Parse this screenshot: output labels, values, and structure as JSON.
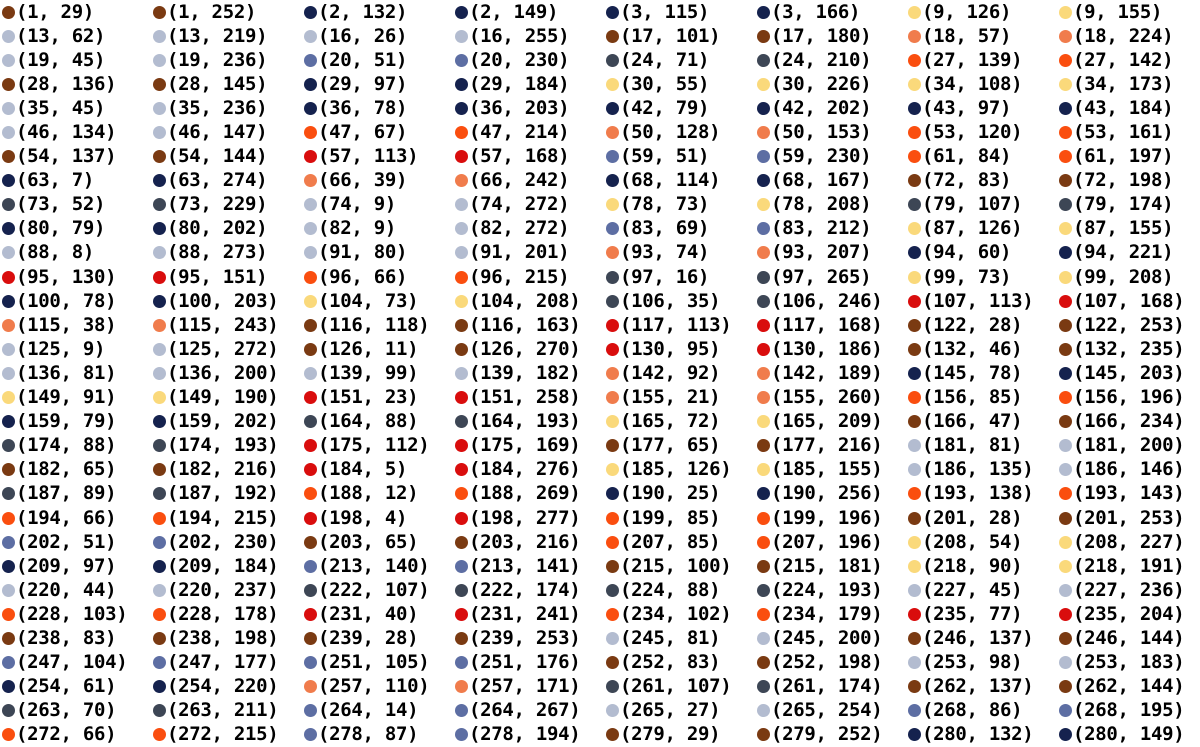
{
  "colors": {
    "o": "#7a3a12",
    "n": "#15224e",
    "y": "#fad97b",
    "l": "#b3bcd0",
    "s": "#f07c4c",
    "c": "#3d4655",
    "r": "#fa4e0f",
    "b": "#5d6ea3",
    "d": "#d90d0d"
  },
  "entries": [
    {
      "label": "(1, 29)",
      "color": "o"
    },
    {
      "label": "(1, 252)",
      "color": "o"
    },
    {
      "label": "(2, 132)",
      "color": "n"
    },
    {
      "label": "(2, 149)",
      "color": "n"
    },
    {
      "label": "(3, 115)",
      "color": "n"
    },
    {
      "label": "(3, 166)",
      "color": "n"
    },
    {
      "label": "(9, 126)",
      "color": "y"
    },
    {
      "label": "(9, 155)",
      "color": "y"
    },
    {
      "label": "(13, 62)",
      "color": "l"
    },
    {
      "label": "(13, 219)",
      "color": "l"
    },
    {
      "label": "(16, 26)",
      "color": "l"
    },
    {
      "label": "(16, 255)",
      "color": "l"
    },
    {
      "label": "(17, 101)",
      "color": "o"
    },
    {
      "label": "(17, 180)",
      "color": "o"
    },
    {
      "label": "(18, 57)",
      "color": "s"
    },
    {
      "label": "(18, 224)",
      "color": "s"
    },
    {
      "label": "(19, 45)",
      "color": "l"
    },
    {
      "label": "(19, 236)",
      "color": "l"
    },
    {
      "label": "(20, 51)",
      "color": "b"
    },
    {
      "label": "(20, 230)",
      "color": "b"
    },
    {
      "label": "(24, 71)",
      "color": "c"
    },
    {
      "label": "(24, 210)",
      "color": "c"
    },
    {
      "label": "(27, 139)",
      "color": "r"
    },
    {
      "label": "(27, 142)",
      "color": "r"
    },
    {
      "label": "(28, 136)",
      "color": "o"
    },
    {
      "label": "(28, 145)",
      "color": "o"
    },
    {
      "label": "(29, 97)",
      "color": "n"
    },
    {
      "label": "(29, 184)",
      "color": "n"
    },
    {
      "label": "(30, 55)",
      "color": "y"
    },
    {
      "label": "(30, 226)",
      "color": "y"
    },
    {
      "label": "(34, 108)",
      "color": "y"
    },
    {
      "label": "(34, 173)",
      "color": "y"
    },
    {
      "label": "(35, 45)",
      "color": "l"
    },
    {
      "label": "(35, 236)",
      "color": "l"
    },
    {
      "label": "(36, 78)",
      "color": "n"
    },
    {
      "label": "(36, 203)",
      "color": "n"
    },
    {
      "label": "(42, 79)",
      "color": "n"
    },
    {
      "label": "(42, 202)",
      "color": "n"
    },
    {
      "label": "(43, 97)",
      "color": "n"
    },
    {
      "label": "(43, 184)",
      "color": "n"
    },
    {
      "label": "(46, 134)",
      "color": "l"
    },
    {
      "label": "(46, 147)",
      "color": "l"
    },
    {
      "label": "(47, 67)",
      "color": "r"
    },
    {
      "label": "(47, 214)",
      "color": "r"
    },
    {
      "label": "(50, 128)",
      "color": "s"
    },
    {
      "label": "(50, 153)",
      "color": "s"
    },
    {
      "label": "(53, 120)",
      "color": "r"
    },
    {
      "label": "(53, 161)",
      "color": "r"
    },
    {
      "label": "(54, 137)",
      "color": "o"
    },
    {
      "label": "(54, 144)",
      "color": "o"
    },
    {
      "label": "(57, 113)",
      "color": "d"
    },
    {
      "label": "(57, 168)",
      "color": "d"
    },
    {
      "label": "(59, 51)",
      "color": "b"
    },
    {
      "label": "(59, 230)",
      "color": "b"
    },
    {
      "label": "(61, 84)",
      "color": "r"
    },
    {
      "label": "(61, 197)",
      "color": "r"
    },
    {
      "label": "(63, 7)",
      "color": "n"
    },
    {
      "label": "(63, 274)",
      "color": "n"
    },
    {
      "label": "(66, 39)",
      "color": "s"
    },
    {
      "label": "(66, 242)",
      "color": "s"
    },
    {
      "label": "(68, 114)",
      "color": "n"
    },
    {
      "label": "(68, 167)",
      "color": "n"
    },
    {
      "label": "(72, 83)",
      "color": "o"
    },
    {
      "label": "(72, 198)",
      "color": "o"
    },
    {
      "label": "(73, 52)",
      "color": "c"
    },
    {
      "label": "(73, 229)",
      "color": "c"
    },
    {
      "label": "(74, 9)",
      "color": "l"
    },
    {
      "label": "(74, 272)",
      "color": "l"
    },
    {
      "label": "(78, 73)",
      "color": "y"
    },
    {
      "label": "(78, 208)",
      "color": "y"
    },
    {
      "label": "(79, 107)",
      "color": "c"
    },
    {
      "label": "(79, 174)",
      "color": "c"
    },
    {
      "label": "(80, 79)",
      "color": "n"
    },
    {
      "label": "(80, 202)",
      "color": "n"
    },
    {
      "label": "(82, 9)",
      "color": "l"
    },
    {
      "label": "(82, 272)",
      "color": "l"
    },
    {
      "label": "(83, 69)",
      "color": "b"
    },
    {
      "label": "(83, 212)",
      "color": "b"
    },
    {
      "label": "(87, 126)",
      "color": "y"
    },
    {
      "label": "(87, 155)",
      "color": "y"
    },
    {
      "label": "(88, 8)",
      "color": "l"
    },
    {
      "label": "(88, 273)",
      "color": "l"
    },
    {
      "label": "(91, 80)",
      "color": "l"
    },
    {
      "label": "(91, 201)",
      "color": "l"
    },
    {
      "label": "(93, 74)",
      "color": "s"
    },
    {
      "label": "(93, 207)",
      "color": "s"
    },
    {
      "label": "(94, 60)",
      "color": "n"
    },
    {
      "label": "(94, 221)",
      "color": "n"
    },
    {
      "label": "(95, 130)",
      "color": "d"
    },
    {
      "label": "(95, 151)",
      "color": "d"
    },
    {
      "label": "(96, 66)",
      "color": "r"
    },
    {
      "label": "(96, 215)",
      "color": "r"
    },
    {
      "label": "(97, 16)",
      "color": "c"
    },
    {
      "label": "(97, 265)",
      "color": "c"
    },
    {
      "label": "(99, 73)",
      "color": "y"
    },
    {
      "label": "(99, 208)",
      "color": "y"
    },
    {
      "label": "(100, 78)",
      "color": "n"
    },
    {
      "label": "(100, 203)",
      "color": "n"
    },
    {
      "label": "(104, 73)",
      "color": "y"
    },
    {
      "label": "(104, 208)",
      "color": "y"
    },
    {
      "label": "(106, 35)",
      "color": "c"
    },
    {
      "label": "(106, 246)",
      "color": "c"
    },
    {
      "label": "(107, 113)",
      "color": "d"
    },
    {
      "label": "(107, 168)",
      "color": "d"
    },
    {
      "label": "(115, 38)",
      "color": "s"
    },
    {
      "label": "(115, 243)",
      "color": "s"
    },
    {
      "label": "(116, 118)",
      "color": "o"
    },
    {
      "label": "(116, 163)",
      "color": "o"
    },
    {
      "label": "(117, 113)",
      "color": "d"
    },
    {
      "label": "(117, 168)",
      "color": "d"
    },
    {
      "label": "(122, 28)",
      "color": "o"
    },
    {
      "label": "(122, 253)",
      "color": "o"
    },
    {
      "label": "(125, 9)",
      "color": "l"
    },
    {
      "label": "(125, 272)",
      "color": "l"
    },
    {
      "label": "(126, 11)",
      "color": "o"
    },
    {
      "label": "(126, 270)",
      "color": "o"
    },
    {
      "label": "(130, 95)",
      "color": "d"
    },
    {
      "label": "(130, 186)",
      "color": "d"
    },
    {
      "label": "(132, 46)",
      "color": "o"
    },
    {
      "label": "(132, 235)",
      "color": "o"
    },
    {
      "label": "(136, 81)",
      "color": "l"
    },
    {
      "label": "(136, 200)",
      "color": "l"
    },
    {
      "label": "(139, 99)",
      "color": "l"
    },
    {
      "label": "(139, 182)",
      "color": "l"
    },
    {
      "label": "(142, 92)",
      "color": "s"
    },
    {
      "label": "(142, 189)",
      "color": "s"
    },
    {
      "label": "(145, 78)",
      "color": "n"
    },
    {
      "label": "(145, 203)",
      "color": "n"
    },
    {
      "label": "(149, 91)",
      "color": "y"
    },
    {
      "label": "(149, 190)",
      "color": "y"
    },
    {
      "label": "(151, 23)",
      "color": "d"
    },
    {
      "label": "(151, 258)",
      "color": "d"
    },
    {
      "label": "(155, 21)",
      "color": "s"
    },
    {
      "label": "(155, 260)",
      "color": "s"
    },
    {
      "label": "(156, 85)",
      "color": "r"
    },
    {
      "label": "(156, 196)",
      "color": "r"
    },
    {
      "label": "(159, 79)",
      "color": "n"
    },
    {
      "label": "(159, 202)",
      "color": "n"
    },
    {
      "label": "(164, 88)",
      "color": "c"
    },
    {
      "label": "(164, 193)",
      "color": "c"
    },
    {
      "label": "(165, 72)",
      "color": "y"
    },
    {
      "label": "(165, 209)",
      "color": "y"
    },
    {
      "label": "(166, 47)",
      "color": "o"
    },
    {
      "label": "(166, 234)",
      "color": "o"
    },
    {
      "label": "(174, 88)",
      "color": "c"
    },
    {
      "label": "(174, 193)",
      "color": "c"
    },
    {
      "label": "(175, 112)",
      "color": "d"
    },
    {
      "label": "(175, 169)",
      "color": "d"
    },
    {
      "label": "(177, 65)",
      "color": "o"
    },
    {
      "label": "(177, 216)",
      "color": "o"
    },
    {
      "label": "(181, 81)",
      "color": "l"
    },
    {
      "label": "(181, 200)",
      "color": "l"
    },
    {
      "label": "(182, 65)",
      "color": "o"
    },
    {
      "label": "(182, 216)",
      "color": "o"
    },
    {
      "label": "(184, 5)",
      "color": "d"
    },
    {
      "label": "(184, 276)",
      "color": "d"
    },
    {
      "label": "(185, 126)",
      "color": "y"
    },
    {
      "label": "(185, 155)",
      "color": "y"
    },
    {
      "label": "(186, 135)",
      "color": "l"
    },
    {
      "label": "(186, 146)",
      "color": "l"
    },
    {
      "label": "(187, 89)",
      "color": "c"
    },
    {
      "label": "(187, 192)",
      "color": "c"
    },
    {
      "label": "(188, 12)",
      "color": "r"
    },
    {
      "label": "(188, 269)",
      "color": "r"
    },
    {
      "label": "(190, 25)",
      "color": "n"
    },
    {
      "label": "(190, 256)",
      "color": "n"
    },
    {
      "label": "(193, 138)",
      "color": "r"
    },
    {
      "label": "(193, 143)",
      "color": "r"
    },
    {
      "label": "(194, 66)",
      "color": "r"
    },
    {
      "label": "(194, 215)",
      "color": "r"
    },
    {
      "label": "(198, 4)",
      "color": "d"
    },
    {
      "label": "(198, 277)",
      "color": "d"
    },
    {
      "label": "(199, 85)",
      "color": "r"
    },
    {
      "label": "(199, 196)",
      "color": "r"
    },
    {
      "label": "(201, 28)",
      "color": "o"
    },
    {
      "label": "(201, 253)",
      "color": "o"
    },
    {
      "label": "(202, 51)",
      "color": "b"
    },
    {
      "label": "(202, 230)",
      "color": "b"
    },
    {
      "label": "(203, 65)",
      "color": "o"
    },
    {
      "label": "(203, 216)",
      "color": "o"
    },
    {
      "label": "(207, 85)",
      "color": "r"
    },
    {
      "label": "(207, 196)",
      "color": "r"
    },
    {
      "label": "(208, 54)",
      "color": "y"
    },
    {
      "label": "(208, 227)",
      "color": "y"
    },
    {
      "label": "(209, 97)",
      "color": "n"
    },
    {
      "label": "(209, 184)",
      "color": "n"
    },
    {
      "label": "(213, 140)",
      "color": "b"
    },
    {
      "label": "(213, 141)",
      "color": "b"
    },
    {
      "label": "(215, 100)",
      "color": "o"
    },
    {
      "label": "(215, 181)",
      "color": "o"
    },
    {
      "label": "(218, 90)",
      "color": "y"
    },
    {
      "label": "(218, 191)",
      "color": "y"
    },
    {
      "label": "(220, 44)",
      "color": "l"
    },
    {
      "label": "(220, 237)",
      "color": "l"
    },
    {
      "label": "(222, 107)",
      "color": "c"
    },
    {
      "label": "(222, 174)",
      "color": "c"
    },
    {
      "label": "(224, 88)",
      "color": "c"
    },
    {
      "label": "(224, 193)",
      "color": "c"
    },
    {
      "label": "(227, 45)",
      "color": "l"
    },
    {
      "label": "(227, 236)",
      "color": "l"
    },
    {
      "label": "(228, 103)",
      "color": "r"
    },
    {
      "label": "(228, 178)",
      "color": "r"
    },
    {
      "label": "(231, 40)",
      "color": "d"
    },
    {
      "label": "(231, 241)",
      "color": "d"
    },
    {
      "label": "(234, 102)",
      "color": "r"
    },
    {
      "label": "(234, 179)",
      "color": "r"
    },
    {
      "label": "(235, 77)",
      "color": "d"
    },
    {
      "label": "(235, 204)",
      "color": "d"
    },
    {
      "label": "(238, 83)",
      "color": "o"
    },
    {
      "label": "(238, 198)",
      "color": "o"
    },
    {
      "label": "(239, 28)",
      "color": "o"
    },
    {
      "label": "(239, 253)",
      "color": "o"
    },
    {
      "label": "(245, 81)",
      "color": "l"
    },
    {
      "label": "(245, 200)",
      "color": "l"
    },
    {
      "label": "(246, 137)",
      "color": "o"
    },
    {
      "label": "(246, 144)",
      "color": "o"
    },
    {
      "label": "(247, 104)",
      "color": "b"
    },
    {
      "label": "(247, 177)",
      "color": "b"
    },
    {
      "label": "(251, 105)",
      "color": "b"
    },
    {
      "label": "(251, 176)",
      "color": "b"
    },
    {
      "label": "(252, 83)",
      "color": "o"
    },
    {
      "label": "(252, 198)",
      "color": "o"
    },
    {
      "label": "(253, 98)",
      "color": "l"
    },
    {
      "label": "(253, 183)",
      "color": "l"
    },
    {
      "label": "(254, 61)",
      "color": "n"
    },
    {
      "label": "(254, 220)",
      "color": "n"
    },
    {
      "label": "(257, 110)",
      "color": "s"
    },
    {
      "label": "(257, 171)",
      "color": "s"
    },
    {
      "label": "(261, 107)",
      "color": "c"
    },
    {
      "label": "(261, 174)",
      "color": "c"
    },
    {
      "label": "(262, 137)",
      "color": "o"
    },
    {
      "label": "(262, 144)",
      "color": "o"
    },
    {
      "label": "(263, 70)",
      "color": "c"
    },
    {
      "label": "(263, 211)",
      "color": "c"
    },
    {
      "label": "(264, 14)",
      "color": "b"
    },
    {
      "label": "(264, 267)",
      "color": "b"
    },
    {
      "label": "(265, 27)",
      "color": "l"
    },
    {
      "label": "(265, 254)",
      "color": "l"
    },
    {
      "label": "(268, 86)",
      "color": "b"
    },
    {
      "label": "(268, 195)",
      "color": "b"
    },
    {
      "label": "(272, 66)",
      "color": "r"
    },
    {
      "label": "(272, 215)",
      "color": "r"
    },
    {
      "label": "(278, 87)",
      "color": "b"
    },
    {
      "label": "(278, 194)",
      "color": "b"
    },
    {
      "label": "(279, 29)",
      "color": "o"
    },
    {
      "label": "(279, 252)",
      "color": "o"
    },
    {
      "label": "(280, 132)",
      "color": "n"
    },
    {
      "label": "(280, 149)",
      "color": "n"
    }
  ]
}
